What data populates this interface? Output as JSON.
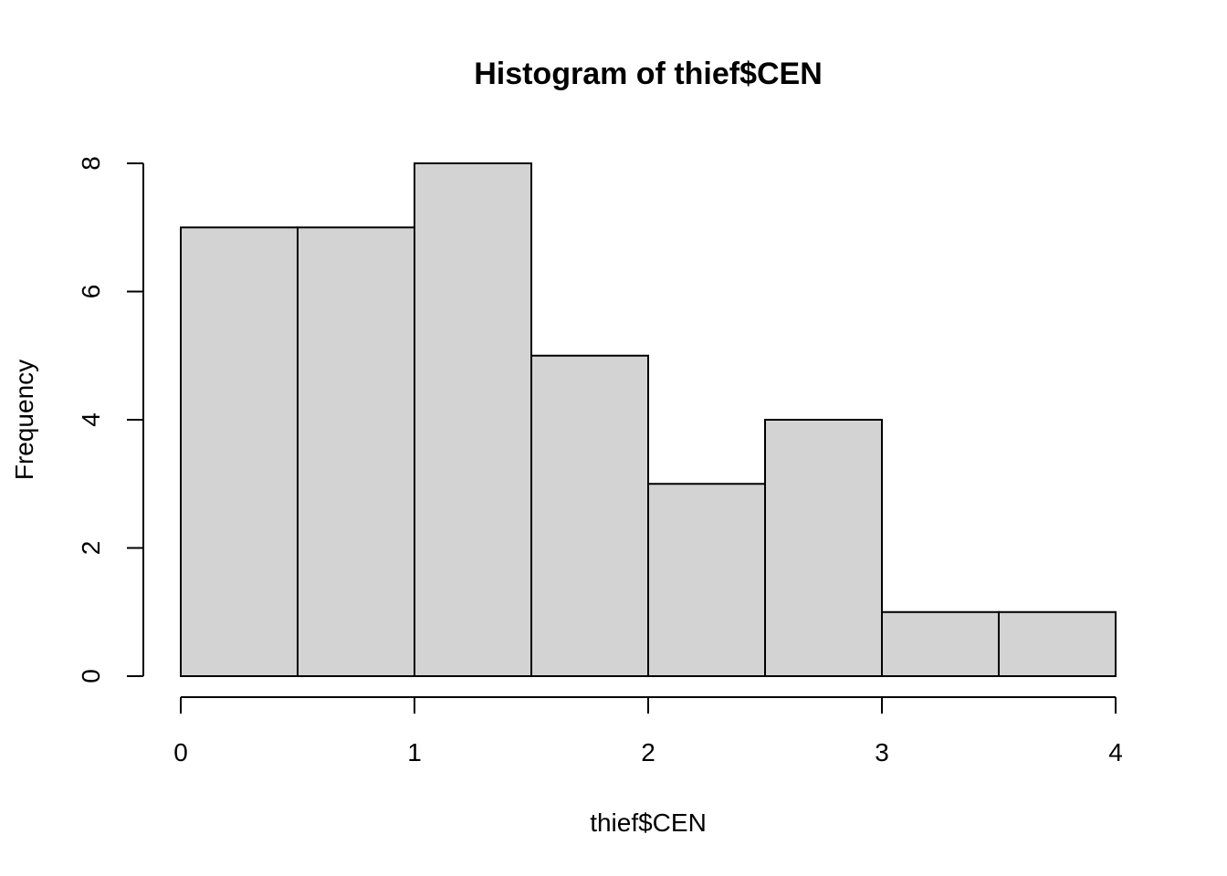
{
  "chart_data": {
    "type": "bar",
    "subtype": "histogram",
    "title": "Histogram of thief$CEN",
    "xlabel": "thief$CEN",
    "ylabel": "Frequency",
    "bins": [
      {
        "start": 0.0,
        "end": 0.5,
        "count": 7
      },
      {
        "start": 0.5,
        "end": 1.0,
        "count": 7
      },
      {
        "start": 1.0,
        "end": 1.5,
        "count": 8
      },
      {
        "start": 1.5,
        "end": 2.0,
        "count": 5
      },
      {
        "start": 2.0,
        "end": 2.5,
        "count": 3
      },
      {
        "start": 2.5,
        "end": 3.0,
        "count": 4
      },
      {
        "start": 3.0,
        "end": 3.5,
        "count": 1
      },
      {
        "start": 3.5,
        "end": 4.0,
        "count": 1
      }
    ],
    "xlim": [
      0,
      4
    ],
    "ylim": [
      0,
      8
    ],
    "xticks": [
      "0",
      "1",
      "2",
      "3",
      "4"
    ],
    "yticks": [
      "0",
      "2",
      "4",
      "6",
      "8"
    ],
    "grid": false,
    "colors": {
      "bar_fill": "#d3d3d3",
      "bar_stroke": "#000000",
      "background": "#ffffff"
    }
  }
}
